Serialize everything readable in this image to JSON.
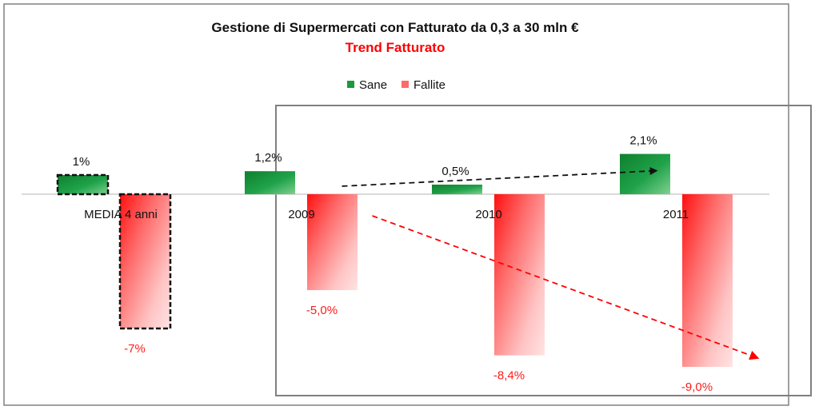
{
  "chart_data": {
    "type": "bar",
    "title": "Gestione di Supermercati con Fatturato da 0,3 a 30 mln €",
    "subtitle": "Trend Fatturato",
    "categories": [
      "MEDIA 4 anni",
      "2009",
      "2010",
      "2011"
    ],
    "series": [
      {
        "name": "Sane",
        "values": [
          1,
          1.2,
          0.5,
          2.1
        ],
        "labels": [
          "1%",
          "1,2%",
          "0,5%",
          "2,1%"
        ],
        "color": "#1a9a3c"
      },
      {
        "name": "Fallite",
        "values": [
          -7,
          -5.0,
          -8.4,
          -9.0
        ],
        "labels": [
          "-7%",
          "-5,0%",
          "-8,4%",
          "-9,0%"
        ],
        "color": "#ff2a2a"
      }
    ],
    "highlighted_category": "MEDIA 4 anni",
    "trend_arrows": [
      {
        "series": "Sane",
        "direction": "up",
        "color": "#111111"
      },
      {
        "series": "Fallite",
        "direction": "down",
        "color": "#ff0000"
      }
    ],
    "ylim": [
      -9.5,
      2.5
    ],
    "legend_position": "top-center",
    "grid": false
  }
}
